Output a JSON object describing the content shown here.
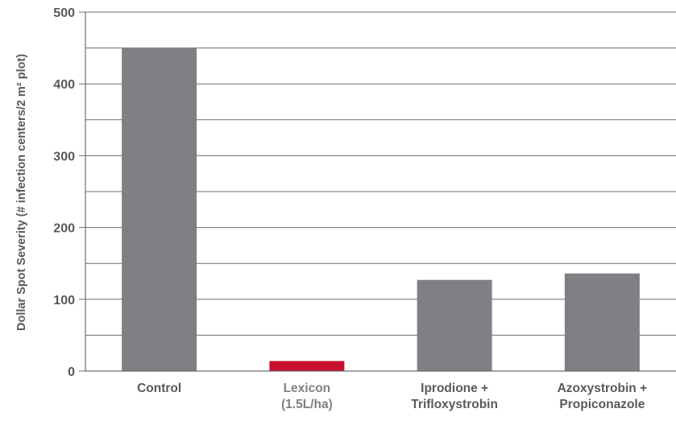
{
  "chart_data": {
    "type": "bar",
    "categories": [
      {
        "lines": [
          "Control"
        ],
        "color": "#58595b"
      },
      {
        "lines": [
          "Lexicon",
          "(1.5L/ha)"
        ],
        "color": "#808080"
      },
      {
        "lines": [
          "Iprodione +",
          "Trifloxystrobin"
        ],
        "color": "#58595b"
      },
      {
        "lines": [
          "Azoxystrobin +",
          "Propiconazole"
        ],
        "color": "#58595b"
      }
    ],
    "values": [
      450,
      14,
      127,
      136
    ],
    "bar_colors": [
      "#808084",
      "#c8102e",
      "#808084",
      "#808084"
    ],
    "ylabel": "Dollar Spot Severity (# infection centers/2 m² plot)",
    "xlabel": "",
    "title": "",
    "ylim": [
      0,
      500
    ],
    "major_ticks": [
      0,
      100,
      200,
      300,
      400,
      500
    ],
    "gridline_step": 50,
    "grid": true,
    "axis_color": "#6d6e71",
    "grid_color": "#6d6e71"
  }
}
